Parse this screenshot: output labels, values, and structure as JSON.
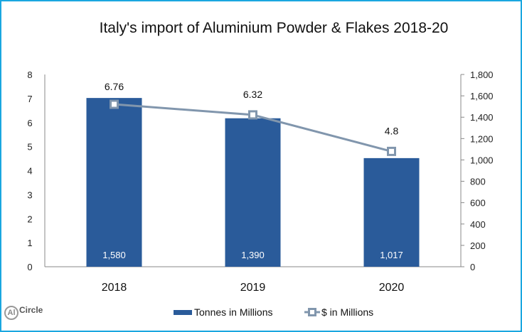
{
  "title": "Italy's import of Aluminium Powder & Flakes 2018-20",
  "colors": {
    "bar": "#2a5b9a",
    "line": "#8196ad",
    "border": "#1aa7e0",
    "axis": "#888888"
  },
  "logo": {
    "text_al": "Al",
    "text_circle": "Circle"
  },
  "legend": {
    "bar_label": "Tonnes in Millions",
    "line_label": "$ in Millions"
  },
  "chart_data": {
    "type": "bar+line",
    "title": "Italy's import of Aluminium Powder & Flakes 2018-20",
    "categories": [
      "2018",
      "2019",
      "2020"
    ],
    "series": [
      {
        "name": "Tonnes in Millions",
        "type": "bar",
        "axis": "right",
        "values": [
          1580,
          1390,
          1017
        ],
        "labels": [
          "1,580",
          "1,390",
          "1,017"
        ]
      },
      {
        "name": "$ in Millions",
        "type": "line",
        "axis": "left",
        "values": [
          6.76,
          6.32,
          4.8
        ],
        "labels": [
          "6.76",
          "6.32",
          "4.8"
        ]
      }
    ],
    "left_axis": {
      "ylim": [
        0,
        8
      ],
      "ticks": [
        "0",
        "1",
        "2",
        "3",
        "4",
        "5",
        "6",
        "7",
        "8"
      ]
    },
    "right_axis": {
      "ylim": [
        0,
        1800
      ],
      "ticks": [
        "0",
        "200",
        "400",
        "600",
        "800",
        "1,000",
        "1,200",
        "1,400",
        "1,600",
        "1,800"
      ]
    },
    "xlabel": "",
    "ylabel": "",
    "grid": false,
    "legend_position": "bottom"
  }
}
